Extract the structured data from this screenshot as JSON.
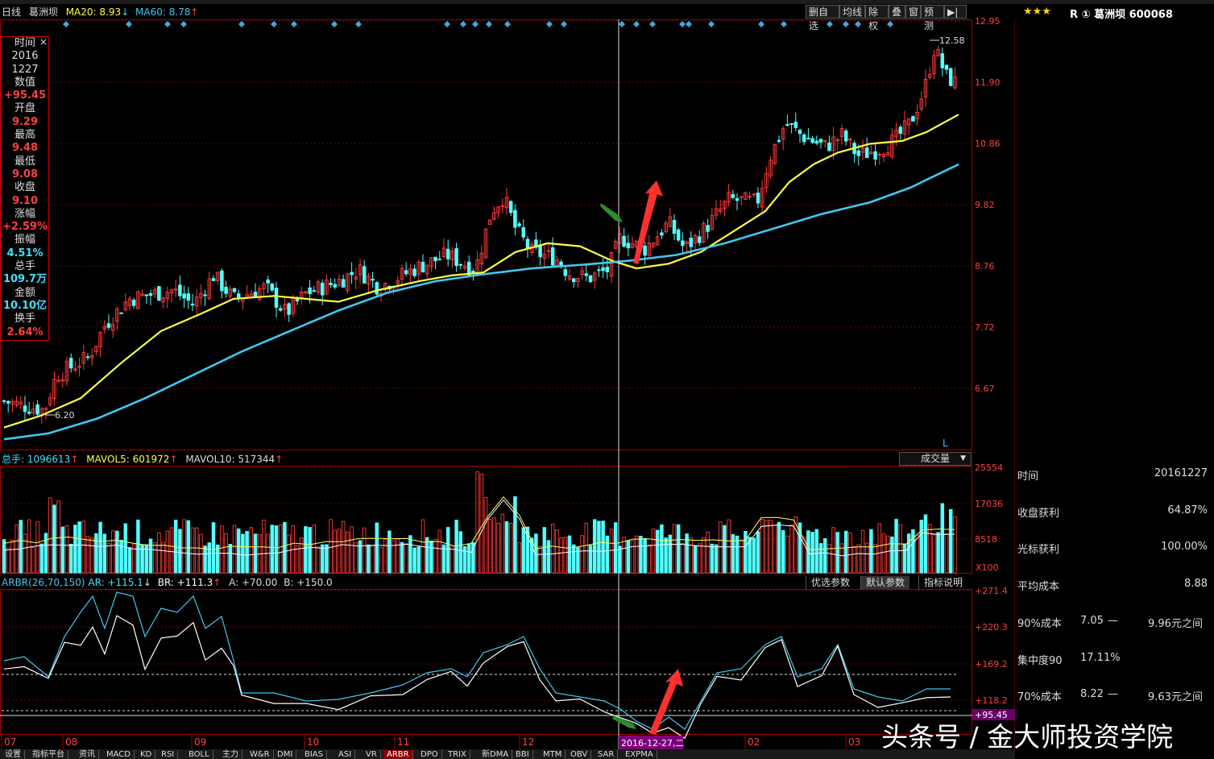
{
  "header": {
    "period": "日线",
    "stock_name": "葛洲坝",
    "ma20": "MA20: 8.93",
    "ma60": "MA60: 8.78",
    "toolbar": [
      "删自选",
      "均线",
      "除权",
      "叠",
      "窗",
      "预测",
      "▶|"
    ]
  },
  "info_panel": {
    "items": [
      {
        "label": "时间",
        "value": "2016\n1227",
        "color": "white"
      },
      {
        "label": "数值",
        "value": "+95.45",
        "color": "red"
      },
      {
        "label": "开盘",
        "value": "9.29",
        "color": "red"
      },
      {
        "label": "最高",
        "value": "9.48",
        "color": "red"
      },
      {
        "label": "最低",
        "value": "9.08",
        "color": "red"
      },
      {
        "label": "收盘",
        "value": "9.10",
        "color": "red"
      },
      {
        "label": "涨幅",
        "value": "+2.59%",
        "color": "red"
      },
      {
        "label": "振幅",
        "value": "4.51%",
        "color": "cyan"
      },
      {
        "label": "总手",
        "value": "109.7万",
        "color": "cyan"
      },
      {
        "label": "金额",
        "value": "10.10亿",
        "color": "cyan"
      },
      {
        "label": "换手",
        "value": "2.64%",
        "color": "red"
      }
    ]
  },
  "price_axis": [
    "12.95",
    "11.90",
    "10.86",
    "9.82",
    "8.76",
    "7.72",
    "6.67"
  ],
  "price_marks": {
    "high": "12.58",
    "low": "6.20",
    "marker": "L"
  },
  "volume_header": {
    "total": "总手: 1096613",
    "mavol5": "MAVOL5: 601972",
    "mavol10": "MAVOL10: 517344",
    "selector": "成交量"
  },
  "volume_axis": [
    "25554",
    "17036",
    "8518",
    "X100"
  ],
  "indicator_header": {
    "name": "ARBR(26,70,150)",
    "ar": "AR: +115.1",
    "br": "BR: +111.3",
    "a": "A: +70.00",
    "b": "B: +150.0"
  },
  "indicator_buttons": [
    "优选参数",
    "默认参数",
    "指标说明"
  ],
  "indicator_axis": [
    "+271.4",
    "+220.3",
    "+169.2",
    "+118.2",
    "+95.45"
  ],
  "x_axis": {
    "labels": [
      "07",
      "08",
      "09",
      "10",
      "11",
      "12",
      "02",
      "03"
    ],
    "cursor_date": "2016-12-27,二"
  },
  "right_panel": {
    "title": "R ① 葛洲坝 600068",
    "stars": "★★★",
    "rows": [
      {
        "label": "时间",
        "value": "20161227"
      },
      {
        "label": "收盘获利",
        "value": "64.87%"
      },
      {
        "label": "光标获利",
        "value": "100.00%"
      },
      {
        "label": "平均成本",
        "value": "8.88"
      }
    ],
    "cost90": {
      "label": "90%成本",
      "from": "7.05",
      "to": "9.96元之间"
    },
    "concentration": {
      "label": "集中度90",
      "value": "17.11%"
    },
    "cost70": {
      "label": "70%成本",
      "from": "8.22",
      "to": "9.63元之间"
    }
  },
  "bottom_tabs": [
    "设置",
    "指标平台",
    "资讯",
    "MACD",
    "KD",
    "RSI",
    "BOLL",
    "主力",
    "W&R",
    "DMI",
    "BIAS",
    "ASI",
    "VR",
    "ARBR",
    "DPO",
    "TRIX",
    "新DMA",
    "BBI",
    "MTM",
    "OBV",
    "SAR",
    "EXPMA"
  ],
  "active_tab": "ARBR",
  "watermark": "头条号 / 金大师投资学院",
  "colors": {
    "up": "#ff3b3b",
    "down": "#54ffff",
    "ma20": "#ffff40",
    "ma60": "#40c8f0"
  }
}
